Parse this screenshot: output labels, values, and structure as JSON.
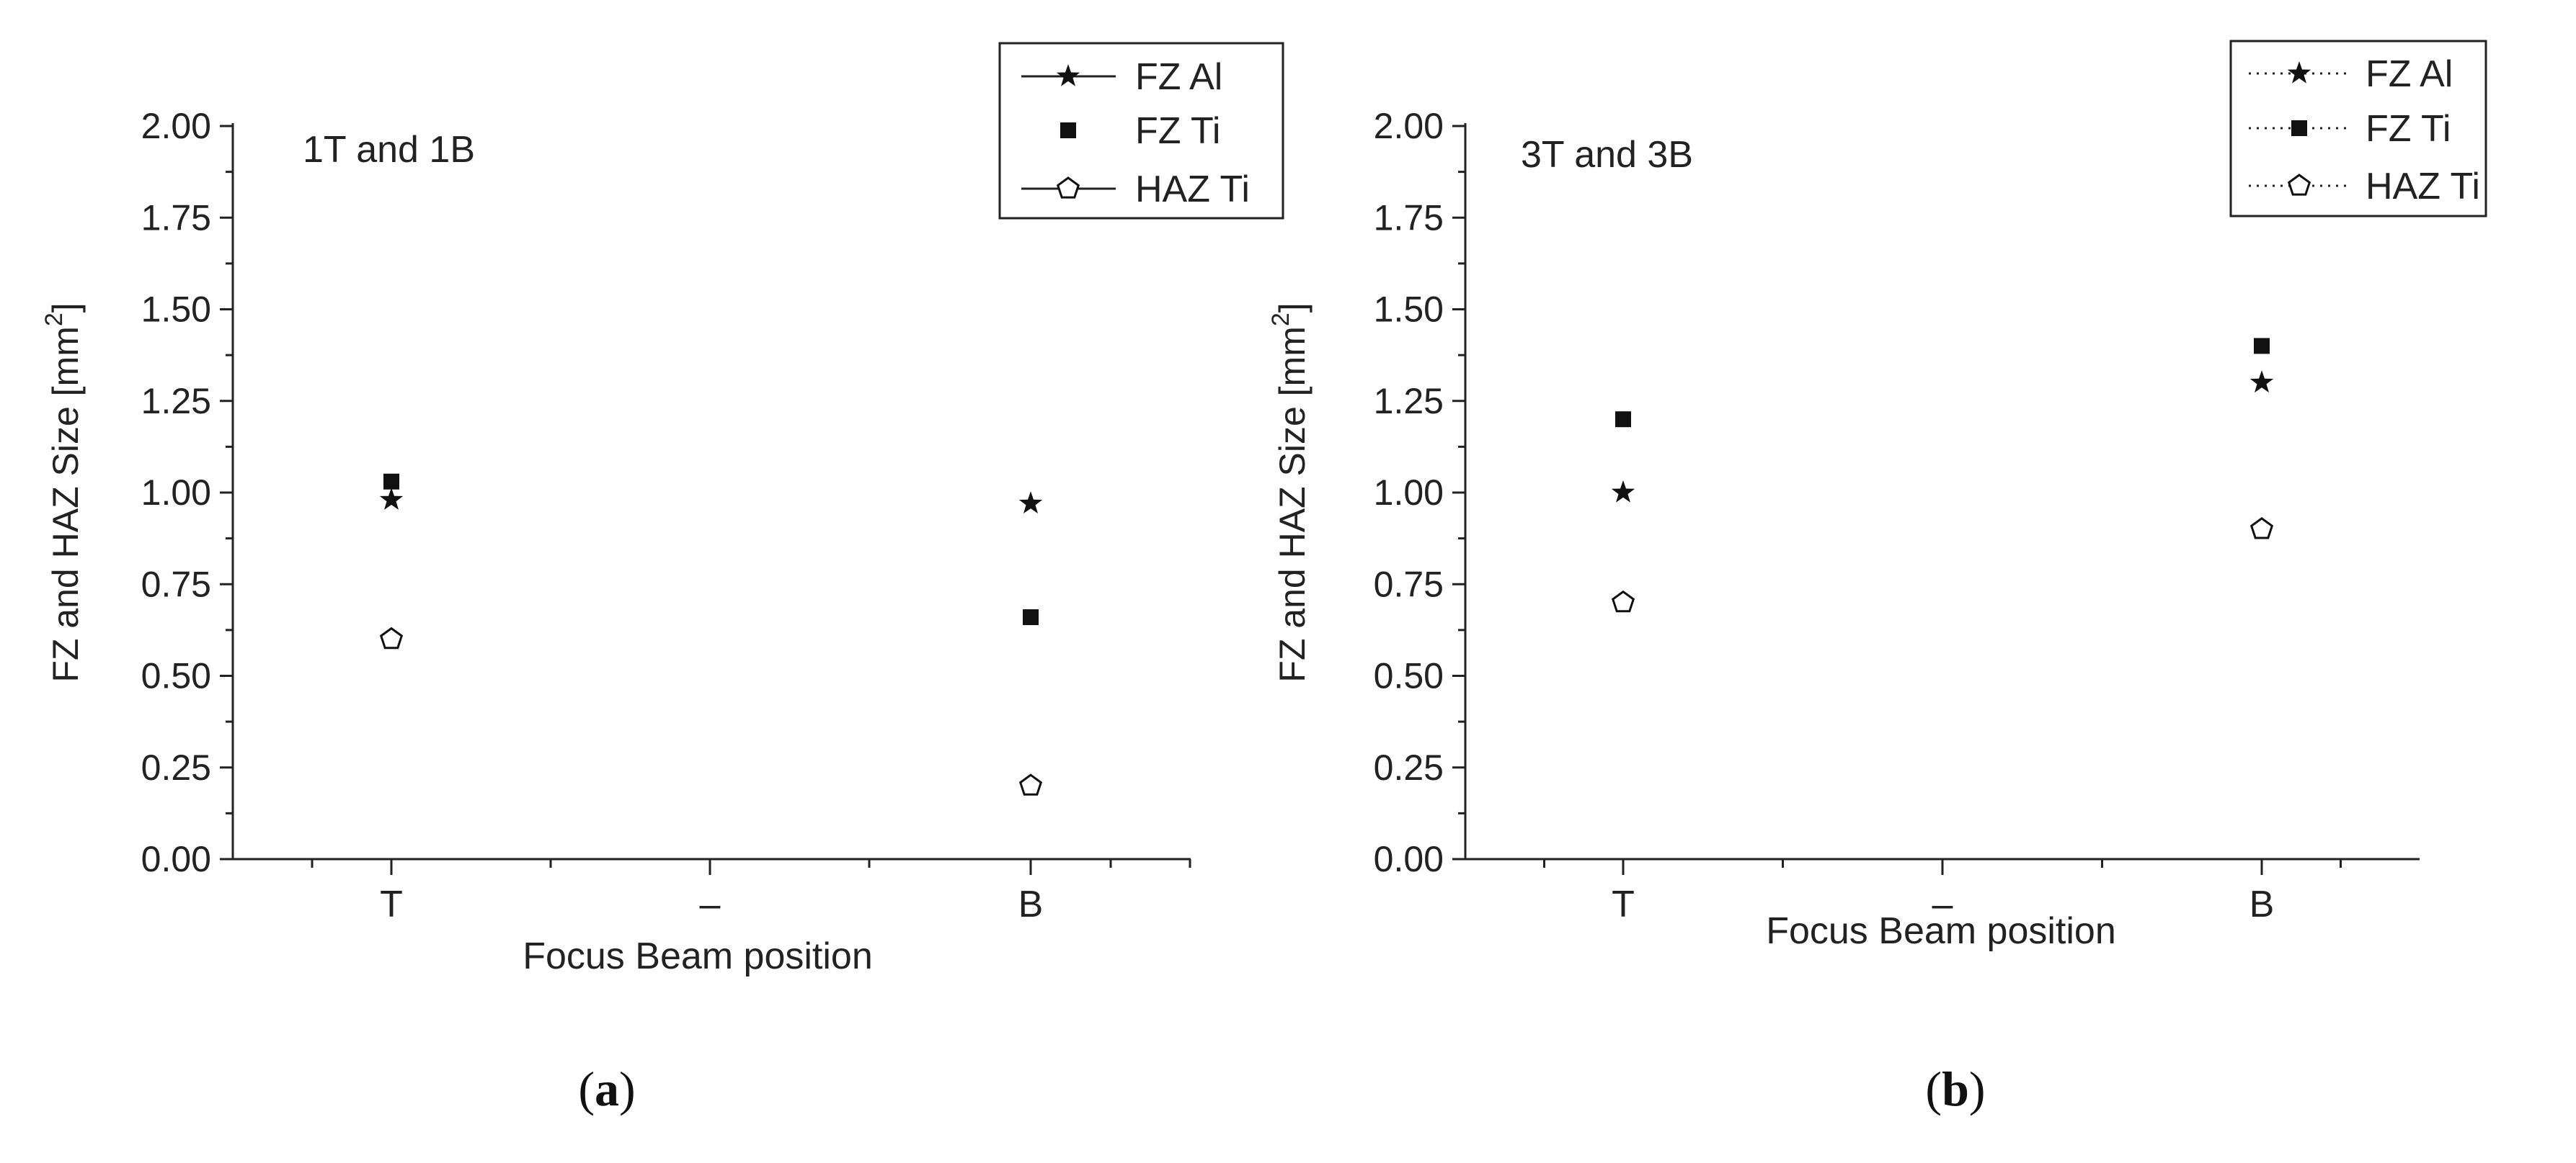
{
  "figure": {
    "panels": [
      {
        "caption_prefix": "(",
        "caption_letter": "a",
        "caption_suffix": ")"
      },
      {
        "caption_prefix": "(",
        "caption_letter": "b",
        "caption_suffix": ")"
      }
    ]
  },
  "chart_data": [
    {
      "type": "scatter",
      "annotation": "1T and 1B",
      "xlabel": "Focus Beam position",
      "ylabel": "FZ and HAZ Size  [mm",
      "ylabel_sup": "2",
      "ylabel_end": "]",
      "categories": [
        "T",
        "–",
        "B"
      ],
      "ylim": [
        0,
        2
      ],
      "yticks": [
        "0.00",
        "0.25",
        "0.50",
        "0.75",
        "1.00",
        "1.25",
        "1.50",
        "1.75",
        "2.00"
      ],
      "legend_position": "top-right",
      "series": [
        {
          "name": "FZ Al",
          "marker": "star",
          "legend_line": "solid",
          "values": [
            0.98,
            null,
            0.97
          ]
        },
        {
          "name": "FZ Ti",
          "marker": "square",
          "legend_line": "none",
          "values": [
            1.03,
            null,
            0.66
          ]
        },
        {
          "name": "HAZ Ti",
          "marker": "pentagon-open",
          "legend_line": "solid",
          "values": [
            0.6,
            null,
            0.2
          ]
        }
      ]
    },
    {
      "type": "scatter",
      "annotation": "3T and 3B",
      "xlabel": "Focus Beam position",
      "ylabel": "FZ and HAZ Size [mm",
      "ylabel_sup": "2",
      "ylabel_end": "]",
      "categories": [
        "T",
        "–",
        "B"
      ],
      "ylim": [
        0,
        2
      ],
      "yticks": [
        "0.00",
        "0.25",
        "0.50",
        "0.75",
        "1.00",
        "1.25",
        "1.50",
        "1.75",
        "2.00"
      ],
      "legend_position": "top-right",
      "series": [
        {
          "name": "FZ Al",
          "marker": "star",
          "legend_line": "dotted",
          "values": [
            1.0,
            null,
            1.3
          ]
        },
        {
          "name": "FZ Ti",
          "marker": "square",
          "legend_line": "dotted",
          "values": [
            1.2,
            null,
            1.4
          ]
        },
        {
          "name": "HAZ Ti",
          "marker": "pentagon-open",
          "legend_line": "dotted",
          "values": [
            0.7,
            null,
            0.9
          ]
        }
      ]
    }
  ]
}
